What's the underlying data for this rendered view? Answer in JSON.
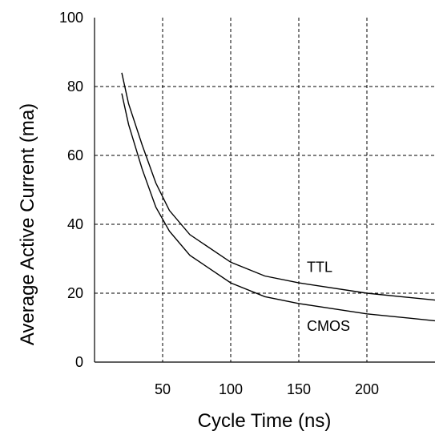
{
  "chart_data": {
    "type": "line",
    "xlabel": "Cycle Time (ns)",
    "ylabel": "Average Active Current (ma)",
    "xlim": [
      0,
      250
    ],
    "ylim": [
      0,
      100
    ],
    "x_ticks": [
      50,
      100,
      150,
      200
    ],
    "y_ticks": [
      0,
      20,
      40,
      60,
      80,
      100
    ],
    "grid": true,
    "series": [
      {
        "name": "TTL",
        "x": [
          20,
          25,
          35,
          45,
          55,
          70,
          100,
          125,
          150,
          200,
          250
        ],
        "y": [
          84,
          75,
          63,
          52,
          44,
          37,
          29,
          25,
          23,
          20,
          18
        ]
      },
      {
        "name": "CMOS",
        "x": [
          20,
          25,
          35,
          45,
          55,
          70,
          100,
          125,
          150,
          200,
          250
        ],
        "y": [
          78,
          69,
          56,
          45,
          38,
          31,
          23,
          19,
          17,
          14,
          12
        ]
      }
    ]
  }
}
